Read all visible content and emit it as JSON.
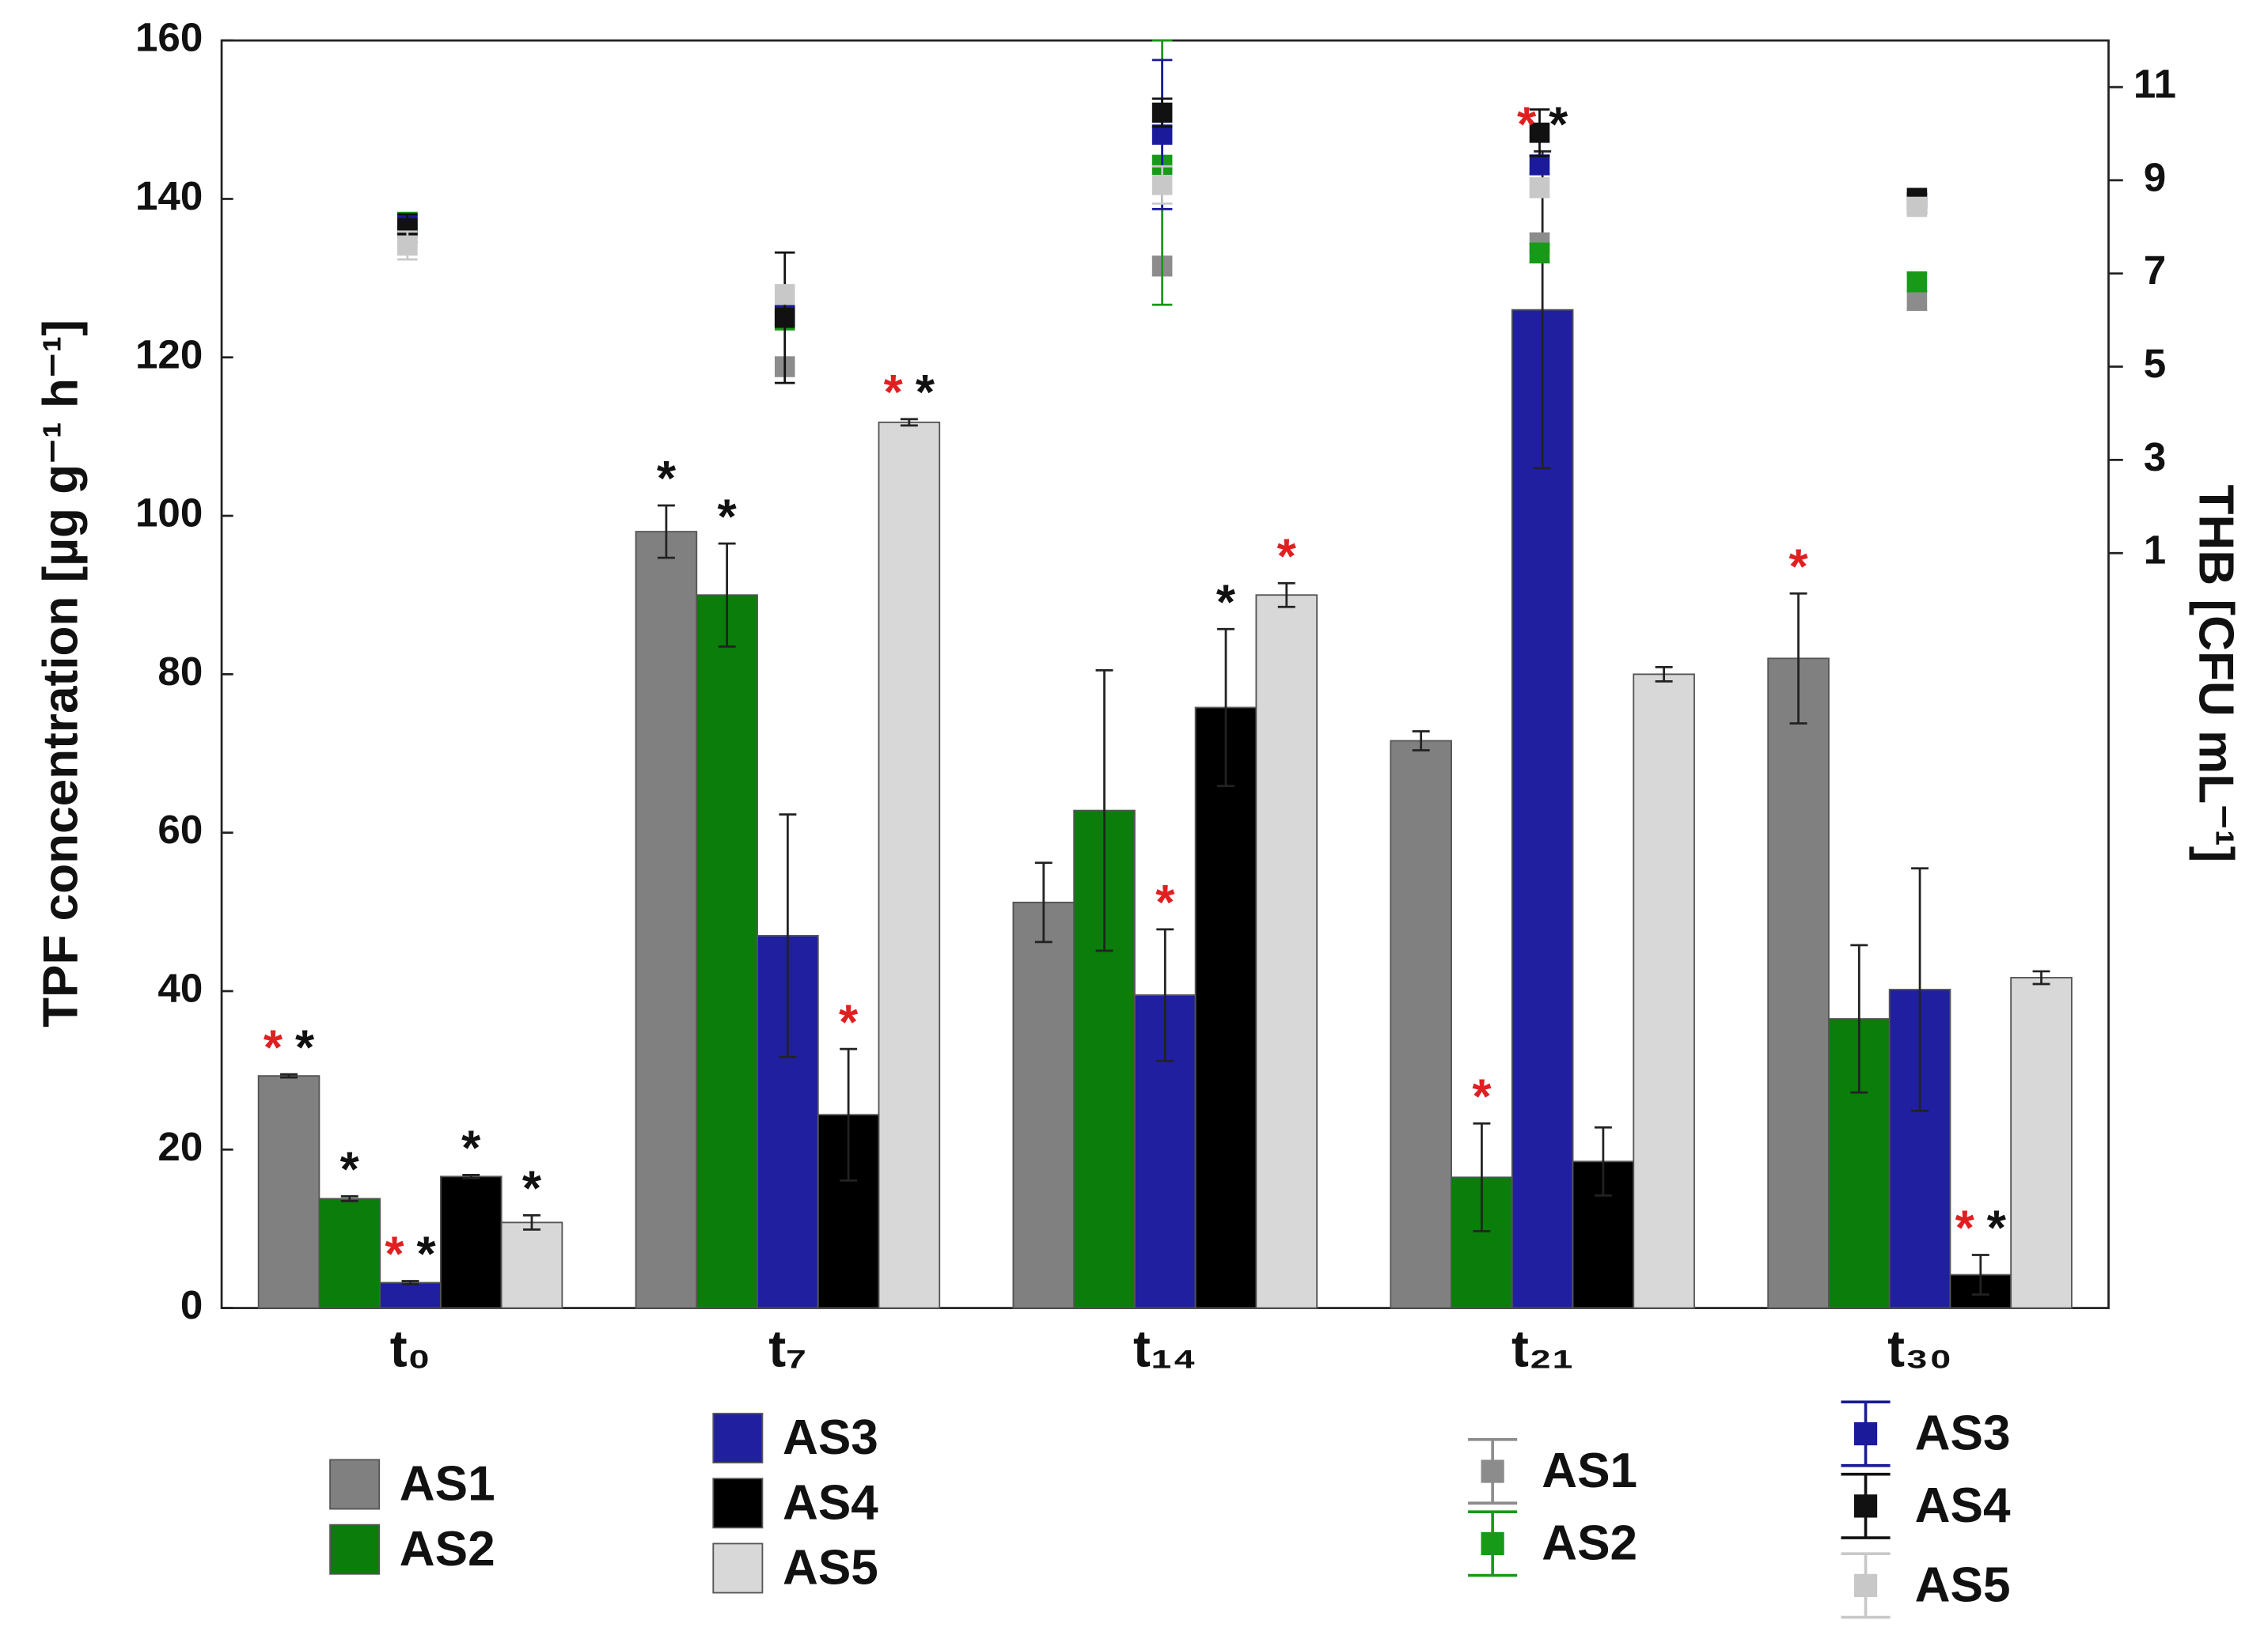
{
  "chart_data": {
    "type": "bar",
    "categories": [
      "t₀",
      "t₇",
      "t₁₄",
      "t₂₁",
      "t₃₀"
    ],
    "ylabel": "TPF concentration [µg g⁻¹ h⁻¹]",
    "y2label": "THB [CFU mL⁻¹]",
    "ylim": [
      0,
      160
    ],
    "yticks": [
      0,
      20,
      40,
      60,
      80,
      100,
      120,
      140,
      160
    ],
    "y2lim": [
      -15.2,
      12
    ],
    "y2ticks": [
      1,
      3,
      5,
      7,
      9,
      11
    ],
    "series": [
      {
        "name": "AS1",
        "type": "bar",
        "color": "#808080",
        "values": [
          29.3,
          98,
          51.2,
          71.6,
          82
        ],
        "errors": [
          0.2,
          3.3,
          5,
          1.2,
          8.2
        ]
      },
      {
        "name": "AS2",
        "type": "bar",
        "color": "#0a7d0a",
        "values": [
          13.8,
          90,
          62.8,
          16.5,
          36.5
        ],
        "errors": [
          0.3,
          6.5,
          17.7,
          6.8,
          9.3
        ]
      },
      {
        "name": "AS3",
        "type": "bar",
        "color": "#1f1fa0",
        "values": [
          3.2,
          47,
          39.5,
          126,
          40.2
        ],
        "errors": [
          0.2,
          15.3,
          8.3,
          20,
          15.3
        ]
      },
      {
        "name": "AS4",
        "type": "bar",
        "color": "#000000",
        "values": [
          16.6,
          24.4,
          75.8,
          18.5,
          4.2
        ],
        "errors": [
          0.2,
          8.3,
          9.9,
          4.3,
          2.5
        ]
      },
      {
        "name": "AS5",
        "type": "bar",
        "color": "#d8d8d8",
        "values": [
          10.8,
          111.8,
          90,
          80,
          41.7
        ],
        "errors": [
          0.9,
          0.4,
          1.5,
          0.9,
          0.8
        ]
      },
      {
        "name": "AS1",
        "type": "scatter",
        "axis": "y2",
        "color": "#8c8c8c",
        "values": [
          8.03,
          5.0,
          7.16,
          7.66,
          6.42
        ],
        "errors": [
          0.2,
          0.2,
          0.2,
          0.2,
          0.2
        ]
      },
      {
        "name": "AS2",
        "type": "scatter",
        "axis": "y2",
        "color": "#179a17",
        "values": [
          8.1,
          6.0,
          9.33,
          7.44,
          6.82
        ],
        "errors": [
          0.2,
          0.2,
          3,
          0.2,
          0.2
        ]
      },
      {
        "name": "AS3",
        "type": "scatter",
        "axis": "y2",
        "color": "#1a1a9a",
        "values": [
          8.05,
          6.1,
          9.98,
          9.33,
          8.5
        ],
        "errors": [
          0.2,
          0.2,
          1.6,
          0.2,
          0.2
        ]
      },
      {
        "name": "AS4",
        "type": "scatter",
        "axis": "y2",
        "color": "#111111",
        "values": [
          7.97,
          6.05,
          10.45,
          10.02,
          8.62
        ],
        "errors": [
          0.3,
          1.4,
          0.3,
          0.5,
          0.1
        ]
      },
      {
        "name": "AS5",
        "type": "scatter",
        "axis": "y2",
        "color": "#c8c8c8",
        "values": [
          7.6,
          6.55,
          8.9,
          8.84,
          8.43
        ],
        "errors": [
          0.3,
          0.2,
          0.4,
          0.2,
          0.1
        ]
      }
    ],
    "annotations": [
      {
        "category": 0,
        "series": 0,
        "stars": [
          {
            "text": "*",
            "color": "#e02020"
          },
          {
            "text": "*",
            "color": "#111111"
          }
        ]
      },
      {
        "category": 0,
        "series": 1,
        "stars": [
          {
            "text": "*",
            "color": "#111111"
          }
        ]
      },
      {
        "category": 0,
        "series": 2,
        "stars": [
          {
            "text": "*",
            "color": "#e02020"
          },
          {
            "text": "*",
            "color": "#111111"
          }
        ]
      },
      {
        "category": 0,
        "series": 3,
        "stars": [
          {
            "text": "*",
            "color": "#111111"
          }
        ]
      },
      {
        "category": 0,
        "series": 4,
        "stars": [
          {
            "text": "*",
            "color": "#111111"
          }
        ]
      },
      {
        "category": 1,
        "series": 0,
        "stars": [
          {
            "text": "*",
            "color": "#111111"
          }
        ]
      },
      {
        "category": 1,
        "series": 1,
        "stars": [
          {
            "text": "*",
            "color": "#111111"
          }
        ]
      },
      {
        "category": 1,
        "series": 3,
        "stars": [
          {
            "text": "*",
            "color": "#e02020"
          }
        ]
      },
      {
        "category": 1,
        "series": 4,
        "stars": [
          {
            "text": "*",
            "color": "#e02020"
          },
          {
            "text": "*",
            "color": "#111111"
          }
        ]
      },
      {
        "category": 2,
        "series": 2,
        "stars": [
          {
            "text": "*",
            "color": "#e02020"
          }
        ]
      },
      {
        "category": 2,
        "series": 3,
        "stars": [
          {
            "text": "*",
            "color": "#111111"
          }
        ]
      },
      {
        "category": 2,
        "series": 4,
        "stars": [
          {
            "text": "*",
            "color": "#e02020"
          }
        ]
      },
      {
        "category": 3,
        "series": 1,
        "stars": [
          {
            "text": "*",
            "color": "#e02020"
          }
        ]
      },
      {
        "category": 3,
        "series": 2,
        "stars": [
          {
            "text": "*",
            "color": "#e02020"
          },
          {
            "text": "*",
            "color": "#111111"
          }
        ]
      },
      {
        "category": 4,
        "series": 0,
        "stars": [
          {
            "text": "*",
            "color": "#e02020"
          }
        ]
      },
      {
        "category": 4,
        "series": 3,
        "stars": [
          {
            "text": "*",
            "color": "#e02020"
          },
          {
            "text": "*",
            "color": "#111111"
          }
        ]
      }
    ]
  }
}
